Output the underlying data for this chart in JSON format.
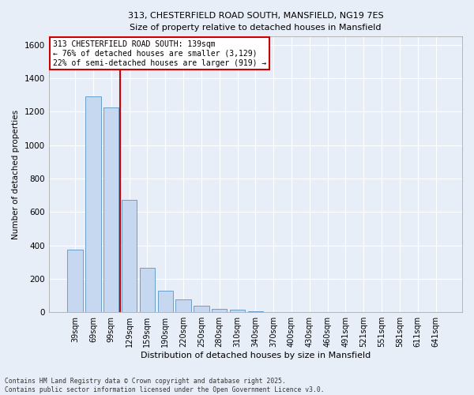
{
  "title_line1": "313, CHESTERFIELD ROAD SOUTH, MANSFIELD, NG19 7ES",
  "title_line2": "Size of property relative to detached houses in Mansfield",
  "xlabel": "Distribution of detached houses by size in Mansfield",
  "ylabel": "Number of detached properties",
  "categories": [
    "39sqm",
    "69sqm",
    "99sqm",
    "129sqm",
    "159sqm",
    "190sqm",
    "220sqm",
    "250sqm",
    "280sqm",
    "310sqm",
    "340sqm",
    "370sqm",
    "400sqm",
    "430sqm",
    "460sqm",
    "491sqm",
    "521sqm",
    "551sqm",
    "581sqm",
    "611sqm",
    "641sqm"
  ],
  "values": [
    375,
    1290,
    1225,
    670,
    265,
    130,
    75,
    38,
    22,
    15,
    5,
    2,
    0,
    0,
    0,
    0,
    0,
    0,
    0,
    0,
    0
  ],
  "bar_color": "#c5d8ef",
  "bar_edgecolor": "#6a9fc8",
  "vline_color": "#cc0000",
  "annotation_text": "313 CHESTERFIELD ROAD SOUTH: 139sqm\n← 76% of detached houses are smaller (3,129)\n22% of semi-detached houses are larger (919) →",
  "annotation_box_edgecolor": "#cc0000",
  "annotation_box_facecolor": "#ffffff",
  "ylim": [
    0,
    1650
  ],
  "yticks": [
    0,
    200,
    400,
    600,
    800,
    1000,
    1200,
    1400,
    1600
  ],
  "background_color": "#e8eef8",
  "plot_background": "#e8eef8",
  "grid_color": "#ffffff",
  "footer_line1": "Contains HM Land Registry data © Crown copyright and database right 2025.",
  "footer_line2": "Contains public sector information licensed under the Open Government Licence v3.0."
}
